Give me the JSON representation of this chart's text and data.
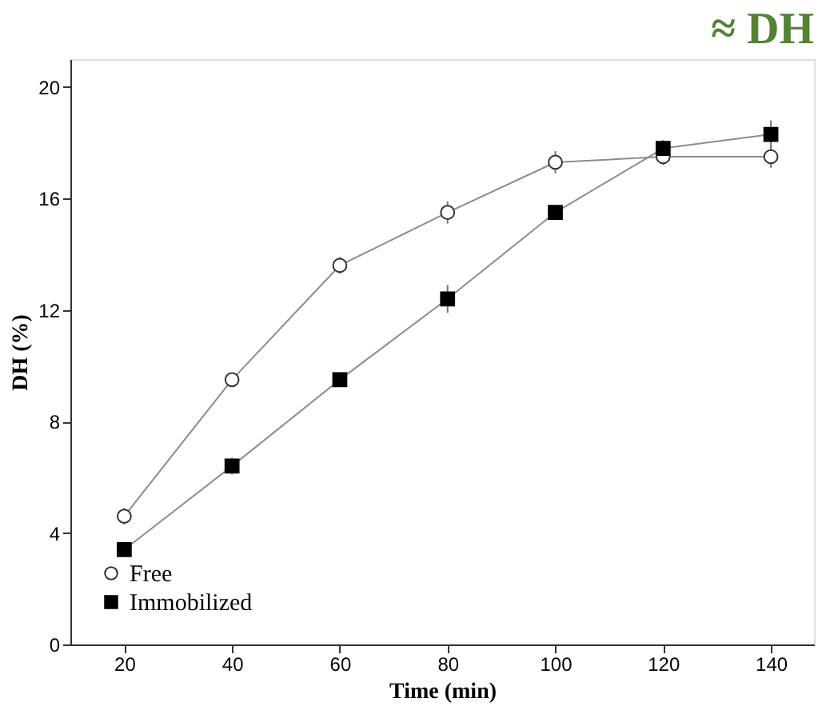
{
  "chart_data": {
    "type": "line",
    "title": "≈ DH",
    "xlabel": "Time (min)",
    "ylabel": "DH (%)",
    "x": [
      20,
      40,
      60,
      80,
      100,
      120,
      140
    ],
    "series": [
      {
        "name": "Free",
        "color": "#333333",
        "marker": "circle",
        "values": [
          4.6,
          9.5,
          13.6,
          15.5,
          17.3,
          17.5,
          17.5
        ],
        "errors": [
          0.3,
          0.2,
          0.3,
          0.4,
          0.4,
          0.3,
          0.4
        ]
      },
      {
        "name": "Immobilized",
        "color": "#000000",
        "marker": "square",
        "values": [
          3.4,
          6.4,
          9.5,
          12.4,
          15.5,
          17.8,
          18.3
        ],
        "errors": [
          0.2,
          0.3,
          0.2,
          0.5,
          0.2,
          0.3,
          0.5
        ]
      }
    ],
    "xlim": [
      10,
      148
    ],
    "ylim": [
      0,
      21
    ],
    "xticks": [
      20,
      40,
      60,
      80,
      100,
      120,
      140
    ],
    "yticks": [
      0,
      4,
      8,
      12,
      16,
      20
    ],
    "grid": false,
    "legend": "bottom left",
    "line_style": "solid"
  }
}
